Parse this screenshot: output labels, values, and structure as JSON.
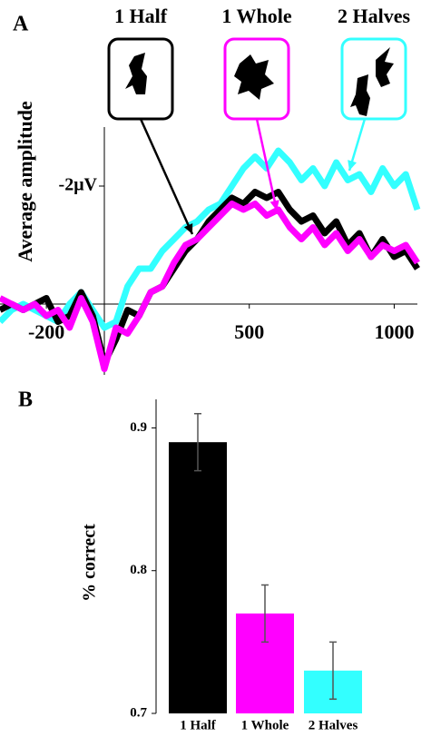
{
  "chart_data": [
    {
      "type": "line",
      "panel": "A",
      "ylabel": "Average amplitude",
      "x": [
        -360,
        -320,
        -280,
        -240,
        -200,
        -160,
        -120,
        -80,
        -40,
        0,
        40,
        80,
        120,
        160,
        200,
        240,
        280,
        320,
        360,
        400,
        440,
        480,
        520,
        560,
        600,
        640,
        680,
        720,
        760,
        800,
        840,
        880,
        920,
        960,
        1000,
        1040,
        1080
      ],
      "series": [
        {
          "name": "1 Half",
          "color": "#000000",
          "values": [
            0.1,
            0.0,
            0.1,
            0.0,
            -0.1,
            0.3,
            0.2,
            -0.2,
            0.2,
            1.0,
            0.6,
            0.1,
            0.2,
            -0.2,
            -0.3,
            -0.6,
            -0.9,
            -1.1,
            -1.4,
            -1.6,
            -1.8,
            -1.7,
            -1.9,
            -1.8,
            -1.9,
            -1.6,
            -1.4,
            -1.5,
            -1.2,
            -1.4,
            -1.0,
            -1.2,
            -0.8,
            -1.1,
            -0.8,
            -0.9,
            -0.6
          ]
        },
        {
          "name": "1 Whole",
          "color": "#ff00ff",
          "values": [
            -0.1,
            0.0,
            0.1,
            0.0,
            0.2,
            0.1,
            0.4,
            -0.1,
            0.3,
            1.1,
            0.4,
            0.5,
            0.2,
            -0.2,
            -0.3,
            -0.7,
            -1.0,
            -1.1,
            -1.3,
            -1.5,
            -1.7,
            -1.6,
            -1.7,
            -1.5,
            -1.6,
            -1.3,
            -1.1,
            -1.3,
            -1.0,
            -1.2,
            -0.9,
            -1.1,
            -0.8,
            -1.0,
            -0.9,
            -1.0,
            -0.7
          ]
        },
        {
          "name": "2 Halves",
          "color": "#33ffff",
          "values": [
            0.3,
            0.1,
            0.0,
            0.1,
            0.2,
            0.3,
            0.0,
            -0.2,
            0.1,
            0.4,
            0.3,
            -0.3,
            -0.6,
            -0.6,
            -0.9,
            -1.1,
            -1.3,
            -1.4,
            -1.6,
            -1.7,
            -2.0,
            -2.3,
            -2.5,
            -2.3,
            -2.6,
            -2.4,
            -2.1,
            -2.3,
            -2.0,
            -2.4,
            -2.1,
            -2.2,
            -1.9,
            -2.3,
            -2.0,
            -2.2,
            -1.6
          ]
        }
      ],
      "xlim": [
        -360,
        1080
      ],
      "xticks": [
        -200,
        500,
        1000
      ],
      "ylim": [
        1.2,
        -3.0
      ],
      "yticks": [
        {
          "value": -2,
          "label": "-2μV"
        }
      ]
    },
    {
      "type": "bar",
      "panel": "B",
      "ylabel": "% correct",
      "categories": [
        "1 Half",
        "1 Whole",
        "2 Halves"
      ],
      "values": [
        0.89,
        0.77,
        0.73
      ],
      "errors": [
        0.02,
        0.02,
        0.02
      ],
      "colors": [
        "#000000",
        "#ff00ff",
        "#33ffff"
      ],
      "ylim": [
        0.7,
        0.92
      ],
      "yticks": [
        0.7,
        0.8,
        0.9
      ]
    }
  ]
}
